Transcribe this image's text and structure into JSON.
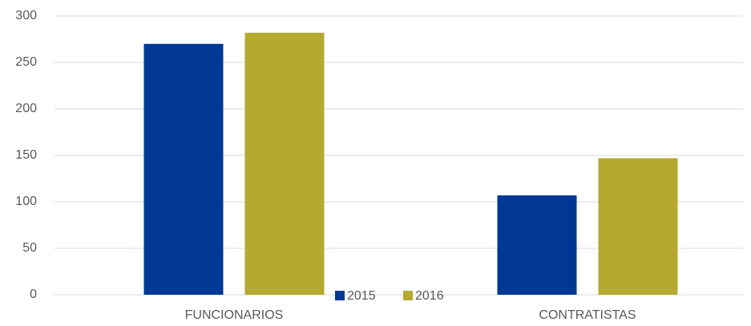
{
  "chart_data": {
    "type": "bar",
    "categories": [
      "FUNCIONARIOS",
      "CONTRATISTAS"
    ],
    "series": [
      {
        "name": "2015",
        "color": "#003893",
        "values": [
          270,
          107
        ]
      },
      {
        "name": "2016",
        "color": "#b5a930",
        "values": [
          282,
          147
        ]
      }
    ],
    "ylim": [
      0,
      300
    ],
    "yticks": [
      0,
      50,
      100,
      150,
      200,
      250,
      300
    ],
    "grid": true,
    "legend": "bottom"
  }
}
